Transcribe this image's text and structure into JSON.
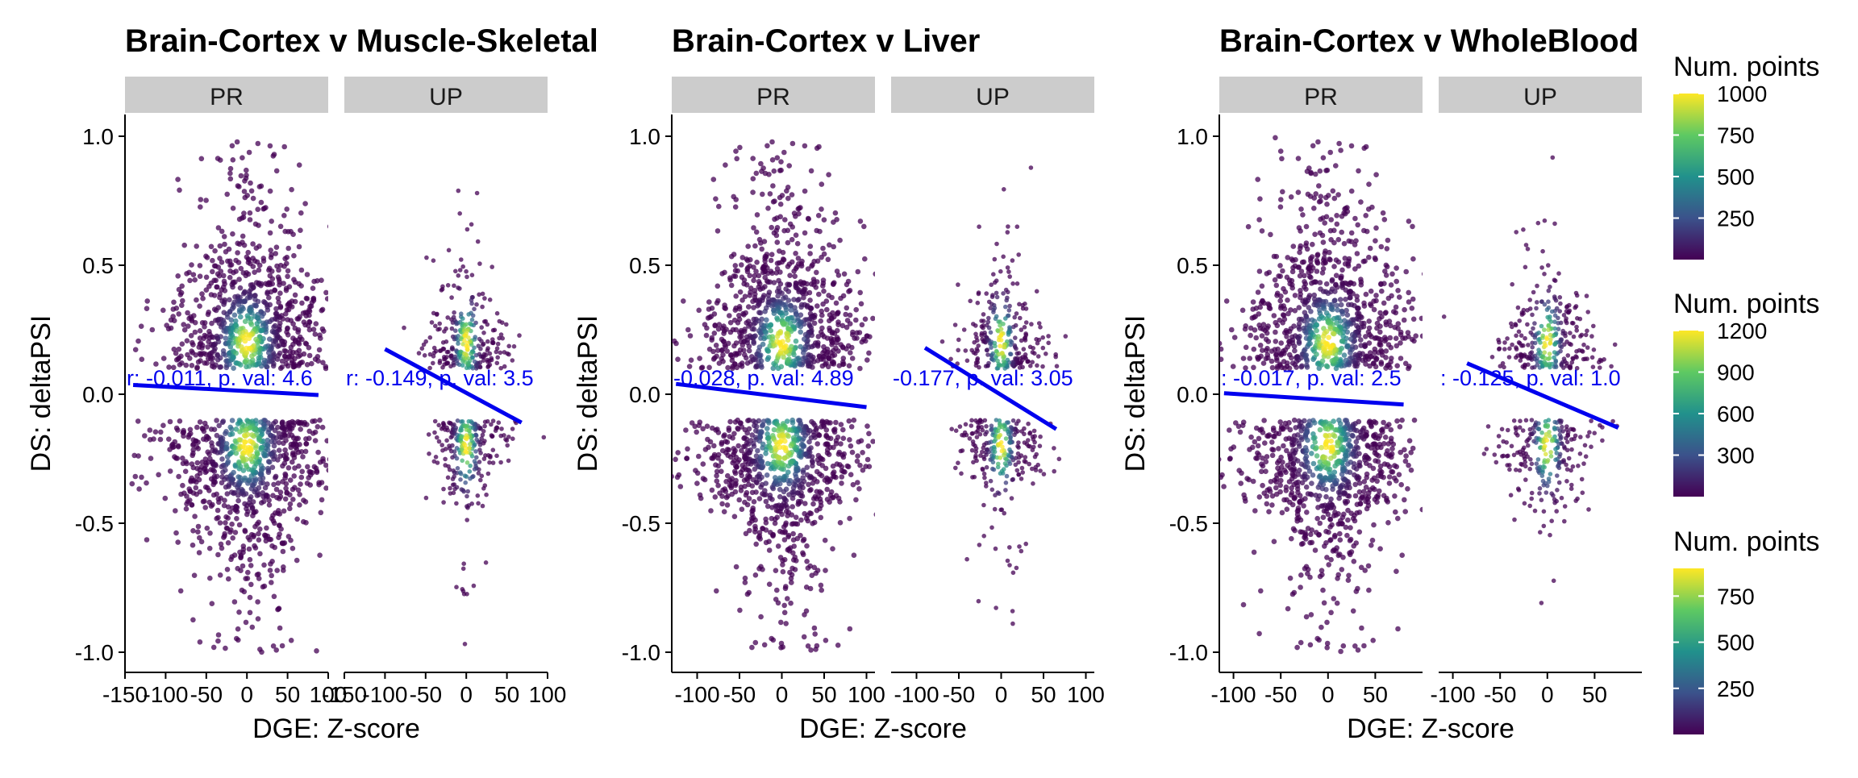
{
  "legend_title": "Num. points",
  "legends": [
    {
      "ticks": [
        250,
        500,
        750,
        1000
      ],
      "min": 0,
      "max": 1000
    },
    {
      "ticks": [
        300,
        600,
        900,
        1200
      ],
      "min": 0,
      "max": 1200
    },
    {
      "ticks": [
        250,
        500,
        750
      ],
      "min": 0,
      "max": 900
    }
  ],
  "colors": {
    "line": "#0000ee",
    "strip": "#cccccc",
    "viridis": [
      "#440154",
      "#3b528b",
      "#21918c",
      "#5ec962",
      "#fde725"
    ]
  },
  "chart_data": [
    {
      "type": "scatter",
      "title": "Brain-Cortex v Muscle-Skeletal",
      "xlabel": "DGE: Z-score",
      "ylabel": "DS: deltaPSI",
      "ylim": [
        -1.05,
        1.05
      ],
      "y_ticks": [
        1.0,
        0.5,
        0.0,
        -0.5,
        -1.0
      ],
      "y_tick_labels": [
        "1.0",
        "0.5",
        "0.0",
        "-0.5",
        "-1.0"
      ],
      "panels": [
        {
          "strip": "PR",
          "xlim": [
            -150,
            100
          ],
          "x_ticks": [
            -150,
            -100,
            -50,
            0,
            50,
            100
          ],
          "x_tick_labels": [
            "-150",
            "-100",
            "-50",
            "0",
            "50",
            "100"
          ],
          "fit_line": {
            "x": [
              -140,
              88
            ],
            "y": [
              0.036,
              -0.003
            ]
          },
          "annotation": "r: -0.011, p. val: 4.6",
          "spread_x": 40,
          "center_x": 0
        },
        {
          "strip": "UP",
          "xlim": [
            -150,
            100
          ],
          "x_ticks": [
            -150,
            -100,
            -50,
            0,
            50,
            100
          ],
          "x_tick_labels": [
            "-150",
            "-100",
            "-50",
            "0",
            "50",
            "100"
          ],
          "fit_line": {
            "x": [
              -100,
              68
            ],
            "y": [
              0.175,
              -0.11
            ]
          },
          "annotation": "r: -0.149, p. val: 3.5",
          "spread_x": 18,
          "center_x": 0
        }
      ]
    },
    {
      "type": "scatter",
      "title": "Brain-Cortex v Liver",
      "xlabel": "DGE: Z-score",
      "ylabel": "DS: deltaPSI",
      "ylim": [
        -1.05,
        1.05
      ],
      "y_ticks": [
        1.0,
        0.5,
        0.0,
        -0.5,
        -1.0
      ],
      "y_tick_labels": [
        "1.0",
        "0.5",
        "0.0",
        "-0.5",
        "-1.0"
      ],
      "panels": [
        {
          "strip": "PR",
          "xlim": [
            -130,
            110
          ],
          "x_ticks": [
            -100,
            -50,
            0,
            50,
            100
          ],
          "x_tick_labels": [
            "-100",
            "-50",
            "0",
            "50",
            "100"
          ],
          "fit_line": {
            "x": [
              -125,
              100
            ],
            "y": [
              0.04,
              -0.05
            ]
          },
          "annotation": "-0.028, p. val: 4.89",
          "spread_x": 38,
          "center_x": 0
        },
        {
          "strip": "UP",
          "xlim": [
            -130,
            110
          ],
          "x_ticks": [
            -100,
            -50,
            0,
            50,
            100
          ],
          "x_tick_labels": [
            "-100",
            "-50",
            "0",
            "50",
            "100"
          ],
          "fit_line": {
            "x": [
              -90,
              65
            ],
            "y": [
              0.18,
              -0.135
            ]
          },
          "annotation": "-0.177, p. val: 3.05",
          "spread_x": 18,
          "center_x": 0
        }
      ]
    },
    {
      "type": "scatter",
      "title": "Brain-Cortex v WholeBlood",
      "xlabel": "DGE: Z-score",
      "ylabel": "DS: deltaPSI",
      "ylim": [
        -1.05,
        1.05
      ],
      "y_ticks": [
        1.0,
        0.5,
        0.0,
        -0.5,
        -1.0
      ],
      "y_tick_labels": [
        "1.0",
        "0.5",
        "0.0",
        "-0.5",
        "-1.0"
      ],
      "panels": [
        {
          "strip": "PR",
          "xlim": [
            -115,
            100
          ],
          "x_ticks": [
            -100,
            -50,
            0,
            50
          ],
          "x_tick_labels": [
            "-100",
            "-50",
            "0",
            "50"
          ],
          "fit_line": {
            "x": [
              -110,
              80
            ],
            "y": [
              0.004,
              -0.04
            ]
          },
          "annotation": ": -0.017, p. val: 2.5",
          "spread_x": 35,
          "center_x": 0
        },
        {
          "strip": "UP",
          "xlim": [
            -115,
            100
          ],
          "x_ticks": [
            -100,
            -50,
            0,
            50
          ],
          "x_tick_labels": [
            "-100",
            "-50",
            "0",
            "50"
          ],
          "fit_line": {
            "x": [
              -85,
              75
            ],
            "y": [
              0.12,
              -0.13
            ]
          },
          "annotation": ": -0.125, p. val: 1.0",
          "spread_x": 18,
          "center_x": 0
        }
      ]
    }
  ]
}
